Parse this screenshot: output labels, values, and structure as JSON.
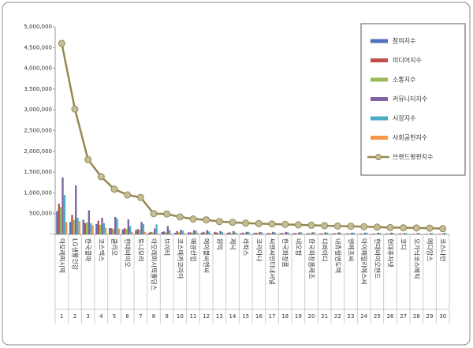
{
  "chart_data": {
    "type": "bar-line",
    "categories": [
      "아모레퍼시픽",
      "LG생활건강",
      "한국콜마",
      "코스맥스",
      "클리오",
      "현대바이오",
      "토니모리",
      "아모레퍼시픽홀딩스",
      "브이티",
      "코스메카코리아",
      "애경산업",
      "에이블씨엔씨",
      "원익",
      "제닉",
      "라파스",
      "코리아나",
      "씨앤씨인터내셔널",
      "한국화장품",
      "네오팜",
      "한국화장품제조",
      "디와이디",
      "내츄럴엔도텍",
      "엔에프씨",
      "아이패밀리에스씨",
      "현대바이오랜드",
      "현대퓨처넷",
      "코디",
      "오가닉코스메틱",
      "메디앙스",
      "코스나인"
    ],
    "category_numbers": [
      1,
      2,
      3,
      4,
      5,
      6,
      7,
      8,
      9,
      10,
      11,
      12,
      13,
      14,
      15,
      16,
      17,
      18,
      19,
      20,
      21,
      22,
      23,
      24,
      25,
      26,
      27,
      28,
      29,
      30
    ],
    "series": [
      {
        "name": "참여지수",
        "type": "bar",
        "color": "#4f72be",
        "values": [
          560000,
          300000,
          350000,
          250000,
          150000,
          120000,
          100000,
          40000,
          60000,
          40000,
          50000,
          40000,
          60000,
          40000,
          30000,
          30000,
          25000,
          25000,
          30000,
          20000,
          20000,
          20000,
          15000,
          15000,
          15000,
          15000,
          15000,
          10000,
          10000,
          10000
        ]
      },
      {
        "name": "미디어지수",
        "type": "bar",
        "color": "#c0504d",
        "values": [
          740000,
          470000,
          270000,
          330000,
          150000,
          150000,
          130000,
          60000,
          70000,
          80000,
          50000,
          60000,
          50000,
          50000,
          40000,
          40000,
          35000,
          30000,
          30000,
          30000,
          25000,
          25000,
          25000,
          20000,
          20000,
          20000,
          20000,
          15000,
          15000,
          15000
        ]
      },
      {
        "name": "소통지수",
        "type": "bar",
        "color": "#9bbb59",
        "values": [
          660000,
          350000,
          290000,
          230000,
          130000,
          130000,
          110000,
          50000,
          50000,
          50000,
          40000,
          40000,
          30000,
          30000,
          30000,
          30000,
          25000,
          25000,
          20000,
          20000,
          20000,
          20000,
          15000,
          15000,
          15000,
          15000,
          15000,
          10000,
          10000,
          10000
        ]
      },
      {
        "name": "커뮤니티지수",
        "type": "bar",
        "color": "#8064a2",
        "values": [
          1370000,
          1180000,
          580000,
          400000,
          420000,
          360000,
          300000,
          140000,
          200000,
          110000,
          100000,
          100000,
          80000,
          80000,
          60000,
          60000,
          60000,
          60000,
          50000,
          50000,
          50000,
          50000,
          40000,
          40000,
          40000,
          40000,
          30000,
          30000,
          30000,
          30000
        ]
      },
      {
        "name": "시장지수",
        "type": "bar",
        "color": "#4bacc6",
        "values": [
          950000,
          400000,
          270000,
          270000,
          380000,
          200000,
          250000,
          240000,
          100000,
          90000,
          90000,
          70000,
          60000,
          50000,
          60000,
          50000,
          50000,
          50000,
          50000,
          50000,
          40000,
          40000,
          40000,
          40000,
          35000,
          35000,
          30000,
          30000,
          30000,
          30000
        ]
      },
      {
        "name": "사회공헌지수",
        "type": "bar",
        "color": "#f79646",
        "values": [
          300000,
          320000,
          220000,
          160000,
          140000,
          60000,
          60000,
          20000,
          20000,
          30000,
          40000,
          20000,
          20000,
          20000,
          20000,
          20000,
          20000,
          20000,
          15000,
          15000,
          15000,
          15000,
          15000,
          15000,
          15000,
          15000,
          15000,
          15000,
          10000,
          10000
        ]
      },
      {
        "name": "브랜드평판지수",
        "type": "line",
        "color": "#938953",
        "marker_color": "#c4bd97",
        "values": [
          4600000,
          3020000,
          1800000,
          1390000,
          1090000,
          950000,
          890000,
          500000,
          490000,
          420000,
          370000,
          350000,
          310000,
          290000,
          270000,
          260000,
          250000,
          240000,
          230000,
          220000,
          210000,
          200000,
          195000,
          185000,
          175000,
          165000,
          160000,
          155000,
          150000,
          140000
        ]
      }
    ],
    "ylim": [
      0,
      5000000
    ],
    "yticks": [
      {
        "value": 0,
        "label": "-"
      },
      {
        "value": 500000,
        "label": "500,000"
      },
      {
        "value": 1000000,
        "label": "1,000,000"
      },
      {
        "value": 1500000,
        "label": "1,500,000"
      },
      {
        "value": 2000000,
        "label": "2,000,000"
      },
      {
        "value": 2500000,
        "label": "2,500,000"
      },
      {
        "value": 3000000,
        "label": "3,000,000"
      },
      {
        "value": 3500000,
        "label": "3,500,000"
      },
      {
        "value": 4000000,
        "label": "4,000,000"
      },
      {
        "value": 4500000,
        "label": "4,500,000"
      },
      {
        "value": 5000000,
        "label": "5,000,000"
      }
    ],
    "grid": false,
    "legend": "top-right"
  }
}
